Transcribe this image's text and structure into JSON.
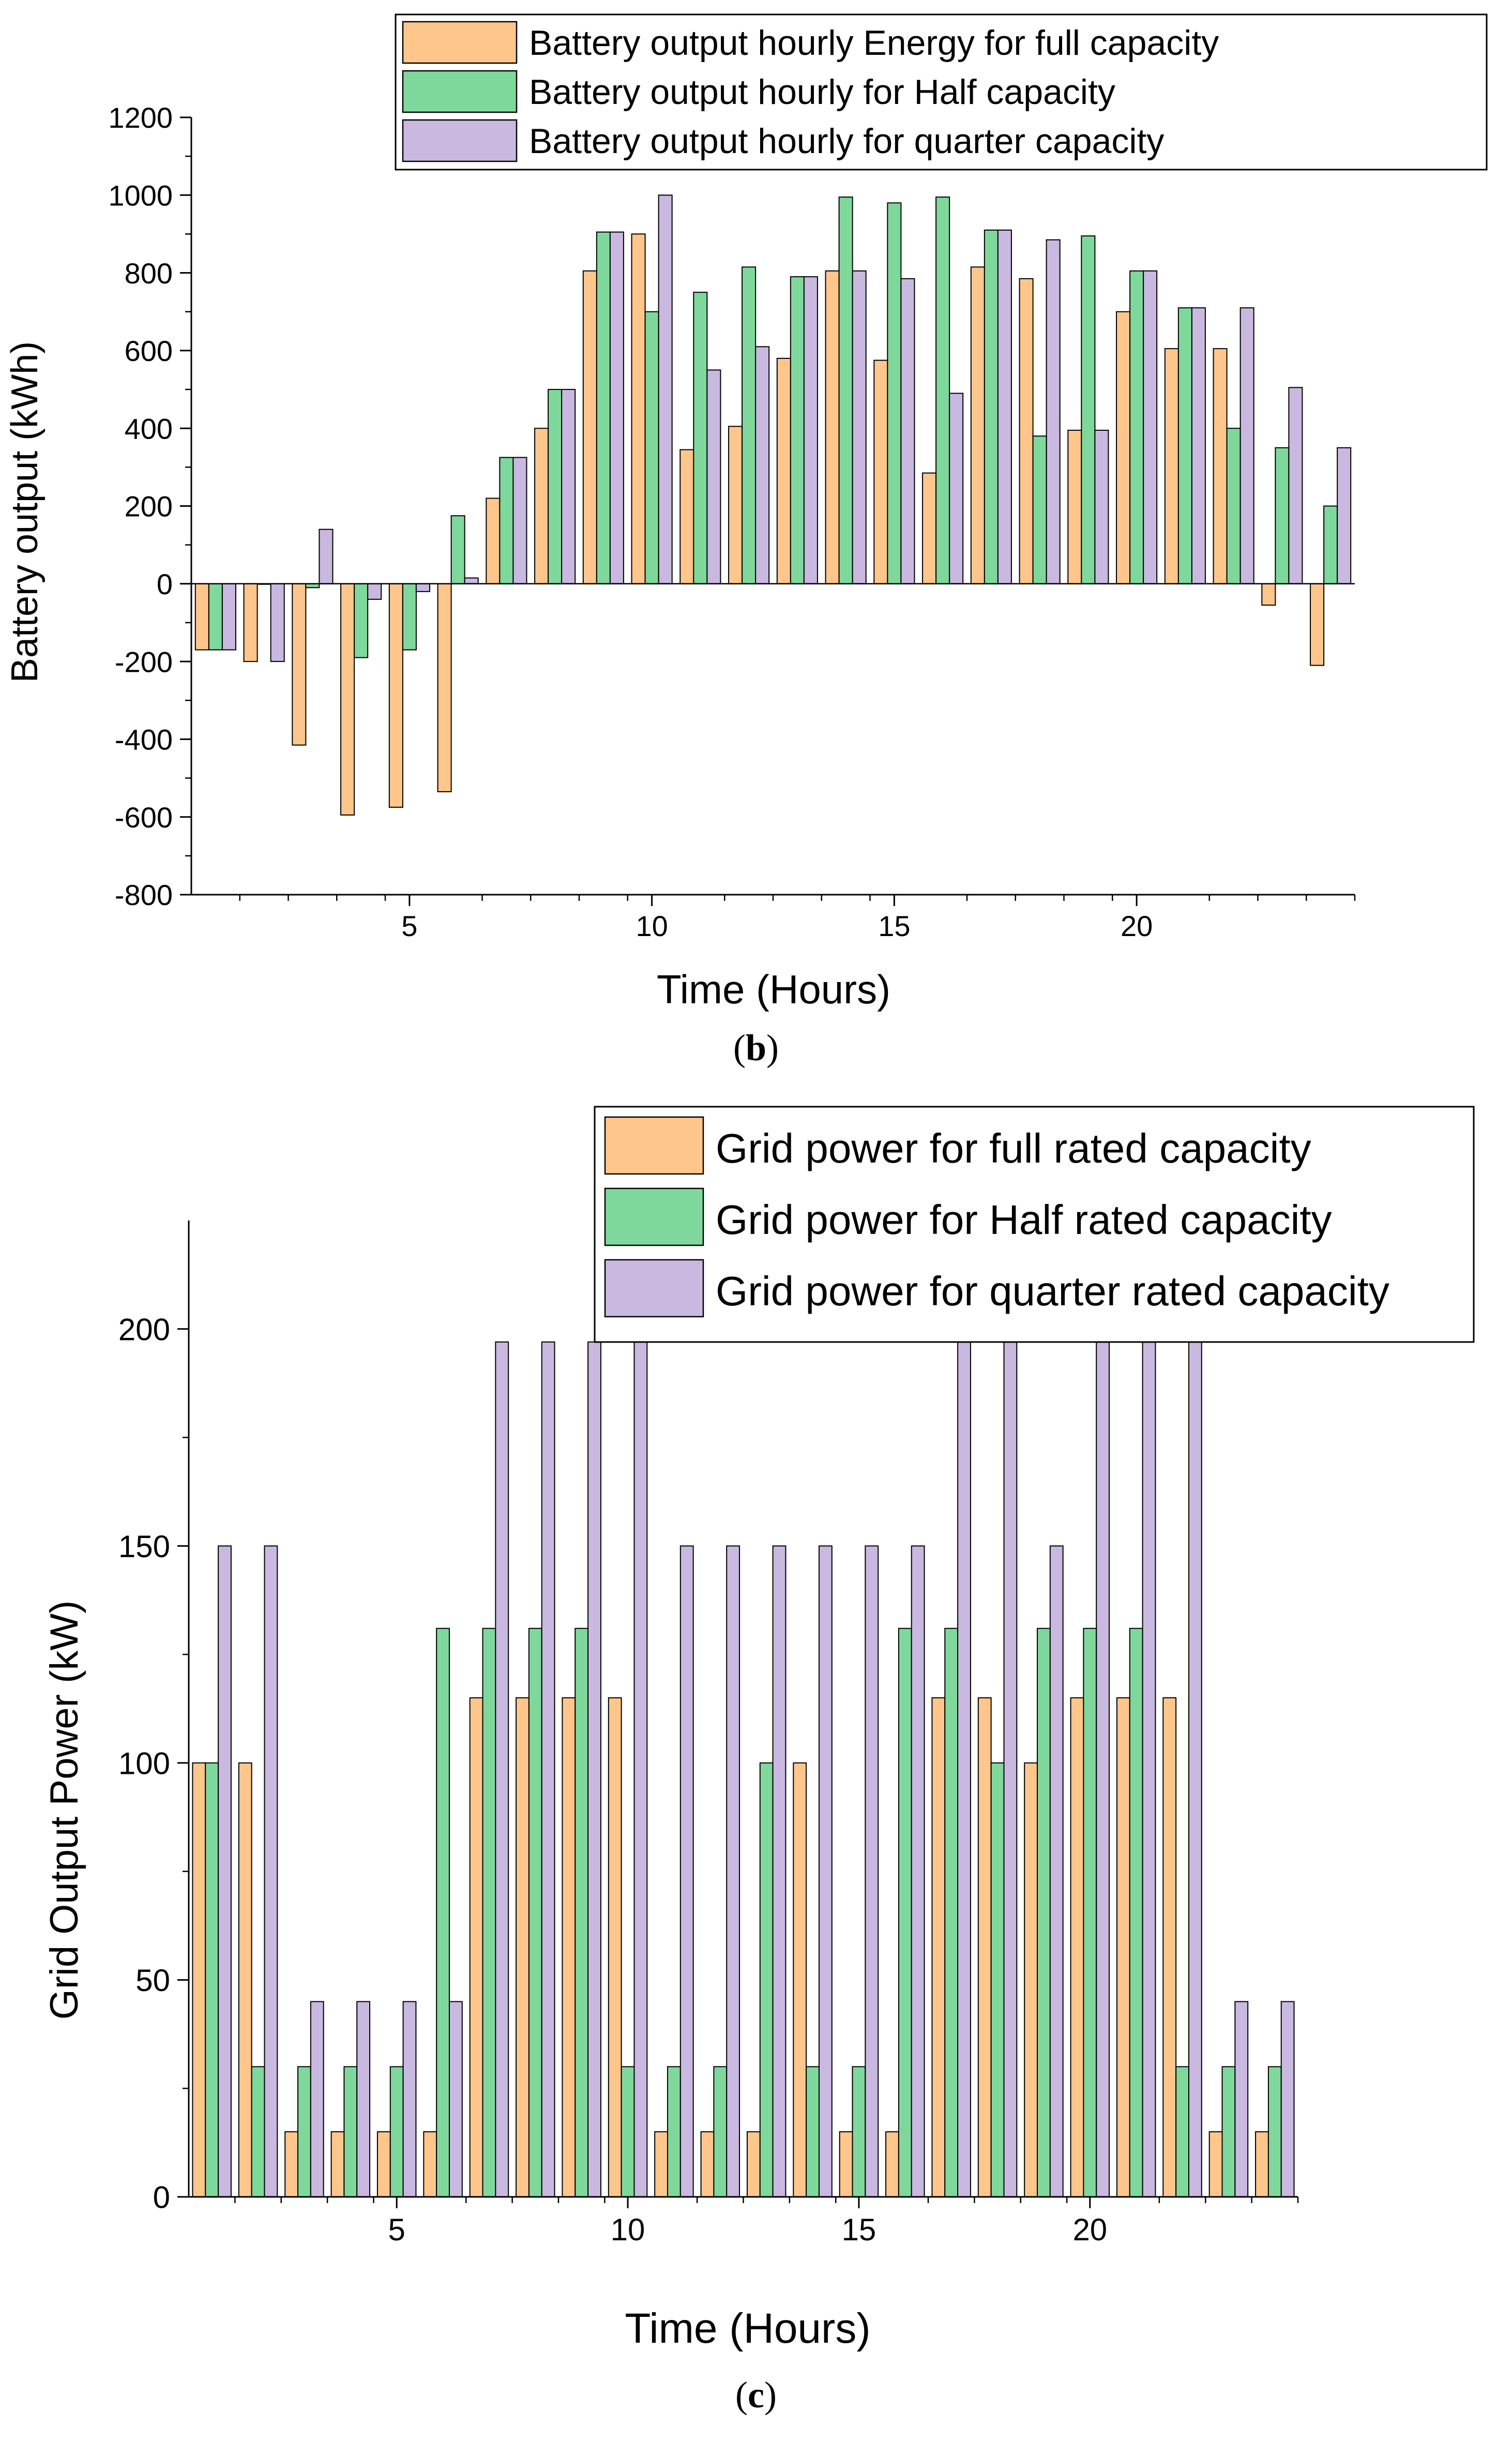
{
  "chart_data": [
    {
      "type": "bar",
      "panel_label": "b",
      "title": "",
      "xlabel": "Time (Hours)",
      "ylabel": "Battery output (kWh)",
      "xlim": [
        0.5,
        24.5
      ],
      "ylim": [
        -800,
        1200
      ],
      "yticks": [
        "-800",
        "-600",
        "-400",
        "-200",
        "0",
        "200",
        "400",
        "600",
        "800",
        "1000",
        "1200"
      ],
      "xticks": [
        "5",
        "10",
        "15",
        "20"
      ],
      "categories": [
        1,
        2,
        3,
        4,
        5,
        6,
        7,
        8,
        9,
        10,
        11,
        12,
        13,
        14,
        15,
        16,
        17,
        18,
        19,
        20,
        21,
        22,
        23,
        24
      ],
      "legend_position": "top-right",
      "series": [
        {
          "name": "Battery output hourly Energy for full capacity",
          "color": "#FFC68C",
          "values": [
            -170,
            -200,
            -415,
            -595,
            -575,
            -535,
            220,
            400,
            805,
            900,
            345,
            405,
            580,
            805,
            575,
            285,
            815,
            785,
            395,
            700,
            605,
            605,
            -55,
            -210
          ]
        },
        {
          "name": "Battery output hourly for Half capacity",
          "color": "#7FD89B",
          "values": [
            -170,
            0,
            -10,
            -190,
            -170,
            175,
            325,
            500,
            905,
            700,
            750,
            815,
            790,
            995,
            980,
            995,
            910,
            380,
            895,
            805,
            710,
            400,
            350,
            200
          ]
        },
        {
          "name": "Battery output hourly for quarter capacity",
          "color": "#C9B8DF",
          "values": [
            -170,
            -200,
            140,
            -40,
            -20,
            15,
            325,
            500,
            905,
            1000,
            550,
            610,
            790,
            805,
            785,
            490,
            910,
            885,
            395,
            805,
            710,
            710,
            505,
            350
          ]
        }
      ]
    },
    {
      "type": "bar",
      "panel_label": "c",
      "title": "",
      "xlabel": "Time (Hours)",
      "ylabel": "Grid Output Power (kW)",
      "xlim": [
        0.5,
        24.5
      ],
      "ylim": [
        0,
        225
      ],
      "yticks": [
        "0",
        "50",
        "100",
        "150",
        "200"
      ],
      "xticks": [
        "5",
        "10",
        "15",
        "20"
      ],
      "categories": [
        1,
        2,
        3,
        4,
        5,
        6,
        7,
        8,
        9,
        10,
        11,
        12,
        13,
        14,
        15,
        16,
        17,
        18,
        19,
        20,
        21,
        22,
        23,
        24
      ],
      "legend_position": "top-right",
      "series": [
        {
          "name": "Grid power for full rated capacity",
          "color": "#FFC68C",
          "values": [
            100,
            100,
            15,
            15,
            15,
            15,
            115,
            115,
            115,
            115,
            15,
            15,
            15,
            100,
            15,
            15,
            115,
            115,
            100,
            115,
            115,
            115,
            15,
            15
          ]
        },
        {
          "name": "Grid power for Half rated capacity",
          "color": "#7FD89B",
          "values": [
            100,
            30,
            30,
            30,
            30,
            131,
            131,
            131,
            131,
            30,
            30,
            30,
            100,
            30,
            30,
            131,
            131,
            100,
            131,
            131,
            131,
            30,
            30,
            30
          ]
        },
        {
          "name": "Grid power for quarter rated capacity",
          "color": "#C9B8DF",
          "values": [
            150,
            150,
            45,
            45,
            45,
            45,
            197,
            197,
            197,
            197,
            150,
            150,
            150,
            150,
            150,
            150,
            197,
            197,
            150,
            197,
            197,
            197,
            45,
            45
          ]
        }
      ]
    }
  ]
}
